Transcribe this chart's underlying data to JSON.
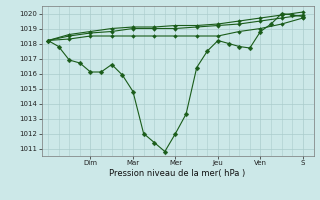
{
  "background_color": "#cce8e8",
  "grid_color": "#aacccc",
  "line_color": "#1a5c1a",
  "title": "Pression niveau de la mer( hPa )",
  "day_labels": [
    "Dim",
    "Mar",
    "Mer",
    "Jeu",
    "Ven",
    "S"
  ],
  "day_positions": [
    1.0,
    2.0,
    3.0,
    4.0,
    5.0,
    6.0
  ],
  "ylim": [
    1010.5,
    1020.5
  ],
  "yticks": [
    1011,
    1012,
    1013,
    1014,
    1015,
    1016,
    1017,
    1018,
    1019,
    1020
  ],
  "series": [
    {
      "x": [
        0.0,
        0.25,
        0.5,
        0.75,
        1.0,
        1.25,
        1.5,
        1.75,
        2.0,
        2.25,
        2.5,
        2.75,
        3.0,
        3.25,
        3.5,
        3.75,
        4.0,
        4.25,
        4.5,
        4.75,
        5.0,
        5.25,
        5.5,
        5.75,
        6.0
      ],
      "y": [
        1018.2,
        1017.8,
        1016.9,
        1016.7,
        1016.1,
        1016.1,
        1016.6,
        1015.9,
        1014.8,
        1012.0,
        1011.4,
        1010.8,
        1012.0,
        1013.3,
        1016.4,
        1017.5,
        1018.2,
        1018.0,
        1017.8,
        1017.7,
        1018.8,
        1019.3,
        1020.0,
        1019.9,
        1019.8
      ],
      "markersize": 2.5
    },
    {
      "x": [
        0.0,
        0.5,
        1.0,
        1.5,
        2.0,
        2.5,
        3.0,
        3.5,
        4.0,
        4.5,
        5.0,
        5.5,
        6.0
      ],
      "y": [
        1018.2,
        1018.3,
        1018.5,
        1018.5,
        1018.5,
        1018.5,
        1018.5,
        1018.5,
        1018.5,
        1018.8,
        1019.0,
        1019.3,
        1019.7
      ],
      "markersize": 2.0
    },
    {
      "x": [
        0.0,
        0.5,
        1.0,
        1.5,
        2.0,
        2.5,
        3.0,
        3.5,
        4.0,
        4.5,
        5.0,
        5.5,
        6.0
      ],
      "y": [
        1018.2,
        1018.5,
        1018.7,
        1018.8,
        1019.0,
        1019.0,
        1019.0,
        1019.1,
        1019.2,
        1019.3,
        1019.5,
        1019.7,
        1019.9
      ],
      "markersize": 2.0
    },
    {
      "x": [
        0.0,
        0.5,
        1.0,
        1.5,
        2.0,
        2.5,
        3.0,
        3.5,
        4.0,
        4.5,
        5.0,
        5.5,
        6.0
      ],
      "y": [
        1018.2,
        1018.6,
        1018.8,
        1019.0,
        1019.1,
        1019.1,
        1019.2,
        1019.2,
        1019.3,
        1019.5,
        1019.7,
        1019.9,
        1020.1
      ],
      "markersize": 2.0
    }
  ]
}
